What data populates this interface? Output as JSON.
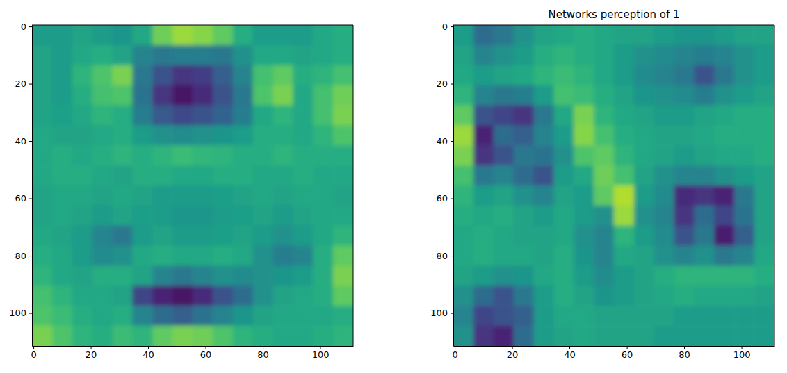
{
  "chart_data": [
    {
      "type": "heatmap",
      "color": "viridis",
      "color_range": [
        0,
        100
      ],
      "xlim": [
        -0.5,
        111.5
      ],
      "ylim": [
        111.5,
        -0.5
      ],
      "xticks": [
        0,
        20,
        40,
        60,
        80,
        100
      ],
      "yticks": [
        0,
        20,
        40,
        60,
        80,
        100
      ],
      "cells": [
        [
          55,
          55,
          58,
          55,
          52,
          60,
          78,
          85,
          82,
          75,
          62,
          55,
          55,
          55,
          60,
          62
        ],
        [
          58,
          55,
          60,
          62,
          58,
          45,
          40,
          42,
          42,
          40,
          50,
          60,
          60,
          58,
          60,
          62
        ],
        [
          58,
          55,
          65,
          72,
          80,
          40,
          25,
          15,
          18,
          30,
          45,
          70,
          75,
          62,
          65,
          70
        ],
        [
          58,
          55,
          62,
          70,
          72,
          38,
          15,
          5,
          12,
          25,
          40,
          72,
          80,
          60,
          70,
          78
        ],
        [
          58,
          57,
          60,
          65,
          62,
          42,
          28,
          22,
          25,
          32,
          42,
          60,
          65,
          60,
          70,
          80
        ],
        [
          60,
          58,
          58,
          60,
          62,
          55,
          50,
          48,
          50,
          52,
          55,
          62,
          62,
          60,
          65,
          72
        ],
        [
          60,
          62,
          60,
          62,
          65,
          62,
          65,
          68,
          66,
          65,
          62,
          62,
          65,
          62,
          62,
          62
        ],
        [
          60,
          62,
          62,
          60,
          58,
          62,
          62,
          60,
          60,
          62,
          62,
          60,
          60,
          62,
          60,
          60
        ],
        [
          58,
          60,
          60,
          58,
          60,
          58,
          55,
          55,
          55,
          56,
          58,
          60,
          58,
          60,
          60,
          58
        ],
        [
          58,
          60,
          58,
          55,
          58,
          56,
          55,
          52,
          52,
          55,
          56,
          58,
          55,
          58,
          60,
          60
        ],
        [
          60,
          58,
          55,
          45,
          40,
          55,
          58,
          55,
          55,
          56,
          58,
          55,
          50,
          55,
          60,
          65
        ],
        [
          62,
          60,
          55,
          48,
          50,
          60,
          62,
          60,
          60,
          62,
          60,
          50,
          42,
          45,
          62,
          75
        ],
        [
          65,
          60,
          58,
          62,
          62,
          58,
          45,
          40,
          45,
          50,
          48,
          50,
          52,
          55,
          62,
          80
        ],
        [
          70,
          65,
          60,
          60,
          58,
          20,
          10,
          5,
          12,
          25,
          35,
          50,
          58,
          60,
          62,
          75
        ],
        [
          72,
          68,
          62,
          60,
          62,
          45,
          35,
          30,
          38,
          45,
          52,
          58,
          60,
          60,
          60,
          62
        ],
        [
          80,
          72,
          65,
          62,
          68,
          65,
          75,
          80,
          78,
          72,
          65,
          62,
          60,
          60,
          62,
          65
        ]
      ]
    },
    {
      "type": "heatmap",
      "title": "Networks perception of 1",
      "color": "viridis",
      "color_range": [
        0,
        100
      ],
      "xlim": [
        -0.5,
        111.5
      ],
      "ylim": [
        111.5,
        -0.5
      ],
      "xticks": [
        0,
        20,
        40,
        60,
        80,
        100
      ],
      "yticks": [
        0,
        20,
        40,
        60,
        80,
        100
      ],
      "cells": [
        [
          55,
          35,
          40,
          50,
          58,
          60,
          62,
          60,
          58,
          58,
          55,
          52,
          52,
          55,
          58,
          58
        ],
        [
          58,
          45,
          50,
          55,
          62,
          65,
          62,
          60,
          55,
          50,
          48,
          45,
          42,
          45,
          50,
          55
        ],
        [
          60,
          55,
          58,
          60,
          65,
          68,
          65,
          60,
          55,
          48,
          45,
          40,
          25,
          40,
          50,
          55
        ],
        [
          65,
          45,
          40,
          42,
          55,
          70,
          68,
          62,
          58,
          52,
          50,
          48,
          42,
          50,
          55,
          58
        ],
        [
          75,
          25,
          20,
          15,
          40,
          60,
          80,
          65,
          60,
          58,
          55,
          55,
          58,
          60,
          62,
          62
        ],
        [
          85,
          10,
          35,
          30,
          45,
          55,
          82,
          70,
          62,
          60,
          58,
          58,
          60,
          62,
          62,
          62
        ],
        [
          80,
          15,
          25,
          40,
          38,
          50,
          72,
          75,
          65,
          60,
          58,
          55,
          58,
          60,
          60,
          62
        ],
        [
          70,
          40,
          45,
          35,
          25,
          55,
          60,
          78,
          70,
          58,
          50,
          45,
          45,
          50,
          55,
          58
        ],
        [
          65,
          55,
          58,
          50,
          45,
          58,
          55,
          75,
          88,
          55,
          48,
          12,
          15,
          10,
          40,
          58
        ],
        [
          62,
          60,
          62,
          58,
          55,
          60,
          55,
          50,
          85,
          50,
          45,
          15,
          35,
          20,
          38,
          58
        ],
        [
          60,
          62,
          60,
          58,
          58,
          60,
          50,
          45,
          65,
          55,
          48,
          25,
          40,
          8,
          30,
          58
        ],
        [
          60,
          62,
          60,
          60,
          58,
          62,
          52,
          45,
          60,
          58,
          50,
          45,
          50,
          40,
          45,
          60
        ],
        [
          58,
          55,
          50,
          52,
          60,
          62,
          55,
          48,
          55,
          58,
          62,
          65,
          65,
          65,
          65,
          62
        ],
        [
          50,
          35,
          25,
          40,
          55,
          62,
          58,
          52,
          55,
          58,
          60,
          62,
          60,
          60,
          60,
          58
        ],
        [
          45,
          20,
          25,
          30,
          55,
          60,
          60,
          58,
          58,
          58,
          58,
          55,
          55,
          55,
          55,
          55
        ],
        [
          50,
          15,
          10,
          35,
          55,
          58,
          60,
          58,
          58,
          58,
          55,
          55,
          55,
          55,
          55,
          55
        ]
      ]
    }
  ]
}
